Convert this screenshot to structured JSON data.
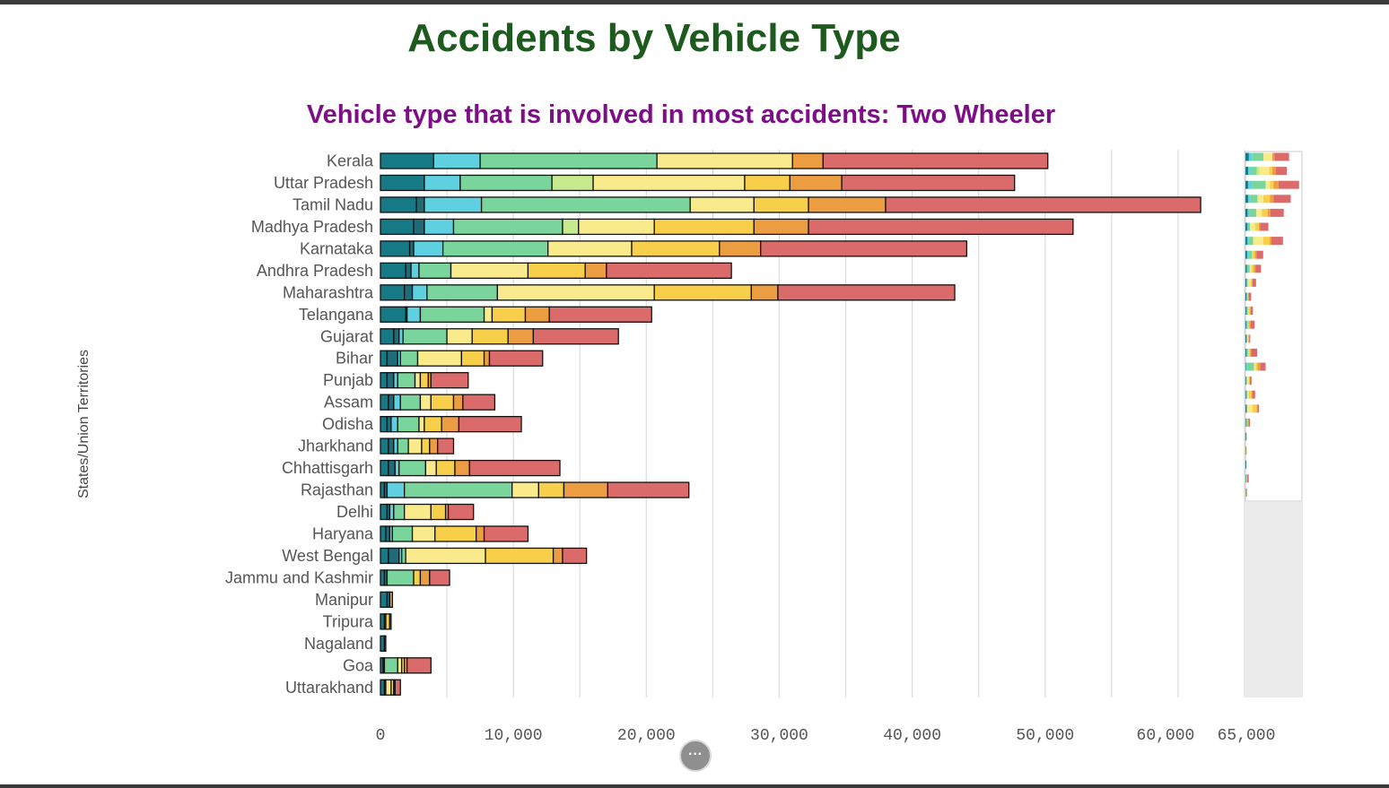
{
  "title": "Accidents by Vehicle Type",
  "subtitle": "Vehicle type that is involved in most accidents: Two Wheeler",
  "more_button_label": "···",
  "colors": {
    "segments": [
      "#157a85",
      "#1f6b78",
      "#5fd0e0",
      "#79d59c",
      "#c8ea8e",
      "#f9ea8c",
      "#f8cf4a",
      "#ec9d42",
      "#db6b6b"
    ],
    "title": "#1d5a1d",
    "subtitle": "#7d0f86",
    "grid": "#dcdcdc"
  },
  "chart_data": {
    "type": "bar",
    "orientation": "horizontal",
    "stacked": true,
    "title": "Accidents by Vehicle Type",
    "subtitle": "Vehicle type that is involved in most accidents: Two Wheeler",
    "ylabel": "States/Union Territories",
    "xlabel": "",
    "xlim": [
      0,
      65000
    ],
    "x_ticks": [
      "0",
      "10,000",
      "20,000",
      "30,000",
      "40,000",
      "50,000",
      "60,000",
      "65,000"
    ],
    "x_tick_values": [
      0,
      10000,
      20000,
      30000,
      40000,
      50000,
      60000,
      65000
    ],
    "grid": true,
    "categories": [
      "Kerala",
      "Uttar Pradesh",
      "Tamil Nadu",
      "Madhya Pradesh",
      "Karnataka",
      "Andhra Pradesh",
      "Maharashtra",
      "Telangana",
      "Gujarat",
      "Bihar",
      "Punjab",
      "Assam",
      "Odisha",
      "Jharkhand",
      "Chhattisgarh",
      "Rajasthan",
      "Delhi",
      "Haryana",
      "West Bengal",
      "Jammu and Kashmir",
      "Manipur",
      "Tripura",
      "Nagaland",
      "Goa",
      "Uttarakhand"
    ],
    "series": [
      {
        "values": [
          4000,
          3300,
          2700,
          2500,
          2200,
          1900,
          1800,
          1900,
          1000,
          500,
          500,
          600,
          500,
          600,
          600,
          300,
          500,
          400,
          600,
          300,
          500,
          300,
          300,
          200,
          300
        ]
      },
      {
        "values": [
          0,
          0,
          600,
          800,
          300,
          400,
          600,
          100,
          400,
          800,
          500,
          400,
          300,
          400,
          500,
          200,
          200,
          300,
          800,
          200,
          200,
          100,
          100,
          100,
          100
        ]
      },
      {
        "values": [
          3500,
          2700,
          4300,
          2200,
          2200,
          600,
          1100,
          1000,
          300,
          200,
          300,
          500,
          500,
          300,
          300,
          1300,
          300,
          200,
          200,
          0,
          0,
          0,
          0,
          0,
          0
        ]
      },
      {
        "values": [
          13300,
          6900,
          15700,
          8200,
          7900,
          2400,
          5300,
          4800,
          3300,
          1300,
          1300,
          1500,
          1600,
          800,
          2000,
          8100,
          800,
          1500,
          300,
          2000,
          0,
          0,
          0,
          1000,
          0
        ]
      },
      {
        "values": [
          0,
          3100,
          0,
          1200,
          0,
          0,
          0,
          0,
          0,
          0,
          0,
          0,
          0,
          0,
          0,
          0,
          0,
          0,
          0,
          0,
          0,
          0,
          0,
          0,
          0
        ]
      },
      {
        "values": [
          10200,
          11400,
          4800,
          5700,
          6300,
          5800,
          11800,
          600,
          1900,
          3300,
          400,
          800,
          400,
          1000,
          800,
          2000,
          2000,
          1700,
          6000,
          0,
          0,
          0,
          0,
          300,
          400
        ]
      },
      {
        "values": [
          0,
          3400,
          4100,
          7500,
          6600,
          4300,
          7300,
          2500,
          2700,
          1700,
          600,
          1700,
          1300,
          600,
          1400,
          1900,
          1100,
          3100,
          5100,
          500,
          0,
          300,
          0,
          200,
          200
        ]
      },
      {
        "values": [
          2300,
          3900,
          5800,
          4100,
          3100,
          1600,
          2000,
          1800,
          1900,
          400,
          200,
          700,
          1300,
          600,
          1100,
          3300,
          200,
          600,
          700,
          700,
          200,
          100,
          0,
          200,
          100
        ]
      },
      {
        "values": [
          16900,
          13000,
          23700,
          19900,
          15500,
          9400,
          13300,
          7700,
          6400,
          4000,
          2800,
          2400,
          4700,
          1200,
          6800,
          6100,
          1900,
          3300,
          1800,
          1500,
          0,
          0,
          0,
          1800,
          400
        ]
      }
    ]
  }
}
